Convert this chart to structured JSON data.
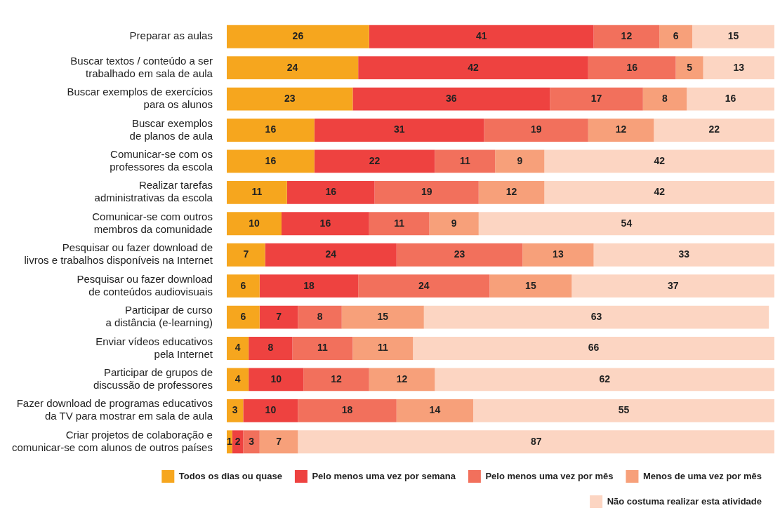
{
  "chart_data": {
    "type": "bar",
    "orientation": "horizontal",
    "stacked": true,
    "data_labels": true,
    "legend": "bottom",
    "categories": [
      "Preparar as aulas",
      "Buscar textos / conteúdo a ser\ntrabalhado em sala de aula",
      "Buscar exemplos de exercícios\npara os alunos",
      "Buscar exemplos\nde planos de aula",
      "Comunicar-se com os\nprofessores da escola",
      "Realizar tarefas\nadministrativas da escola",
      "Comunicar-se com outros\nmembros da comunidade",
      "Pesquisar ou fazer download de\nlivros e trabalhos disponíveis na Internet",
      "Pesquisar ou fazer download\nde conteúdos audiovisuais",
      "Participar de curso\na distância (e-learning)",
      "Enviar vídeos educativos\npela Internet",
      "Participar de grupos de\ndiscussão de professores",
      "Fazer download de programas educativos\nda TV para mostrar em sala de aula",
      "Criar projetos de colaboração e\ncomunicar-se com alunos de outros países"
    ],
    "series": [
      {
        "name": "Todos os dias ou quase",
        "color": "#f6a61e",
        "values": [
          26,
          24,
          23,
          16,
          16,
          11,
          10,
          7,
          6,
          6,
          4,
          4,
          3,
          1
        ]
      },
      {
        "name": "Pelo menos uma vez por semana",
        "color": "#ee4240",
        "values": [
          41,
          42,
          36,
          31,
          22,
          16,
          16,
          24,
          18,
          7,
          8,
          10,
          10,
          2
        ]
      },
      {
        "name": "Pelo menos uma vez por mês",
        "color": "#f2705c",
        "values": [
          12,
          16,
          17,
          19,
          11,
          19,
          11,
          23,
          24,
          8,
          11,
          12,
          18,
          3
        ]
      },
      {
        "name": "Menos de uma vez por mês",
        "color": "#f7a07a",
        "values": [
          6,
          5,
          8,
          12,
          9,
          12,
          9,
          13,
          15,
          15,
          11,
          12,
          14,
          7
        ]
      },
      {
        "name": "Não costuma realizar esta atividade",
        "color": "#fcd5c2",
        "values": [
          15,
          13,
          16,
          22,
          42,
          42,
          54,
          33,
          37,
          63,
          66,
          62,
          55,
          87
        ]
      }
    ]
  }
}
